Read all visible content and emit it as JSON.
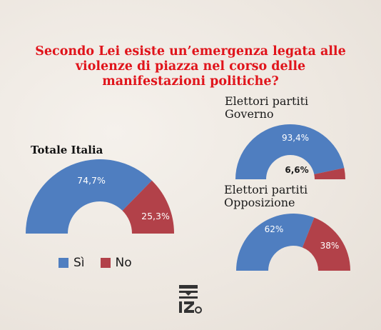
{
  "title_lines": [
    "Secondo Lei esiste un’emergenza legata alle",
    "violenze di piazza nel corso delle",
    "manifestazioni politiche?"
  ],
  "colors": {
    "si": "#4f7ec0",
    "no": "#b24149",
    "title": "#e0141b"
  },
  "legend": {
    "si": "Sì",
    "no": "No"
  },
  "groups": {
    "totale": {
      "title": "Totale Italia",
      "si_label": "74,7%",
      "no_label": "25,3%"
    },
    "governo": {
      "title_line1": "Elettori partiti",
      "title_line2": "Governo",
      "si_label": "93,4%",
      "no_label": "6,6%"
    },
    "opposizione": {
      "title_line1": "Elettori partiti",
      "title_line2": "Opposizione",
      "si_label": "62%",
      "no_label": "38%"
    }
  },
  "logo_text": "IZ",
  "chart_data": [
    {
      "type": "pie",
      "title": "Totale Italia",
      "categories": [
        "Sì",
        "No"
      ],
      "values": [
        74.7,
        25.3
      ]
    },
    {
      "type": "pie",
      "title": "Elettori partiti Governo",
      "categories": [
        "Sì",
        "No"
      ],
      "values": [
        93.4,
        6.6
      ]
    },
    {
      "type": "pie",
      "title": "Elettori partiti Opposizione",
      "categories": [
        "Sì",
        "No"
      ],
      "values": [
        62,
        38
      ]
    }
  ]
}
